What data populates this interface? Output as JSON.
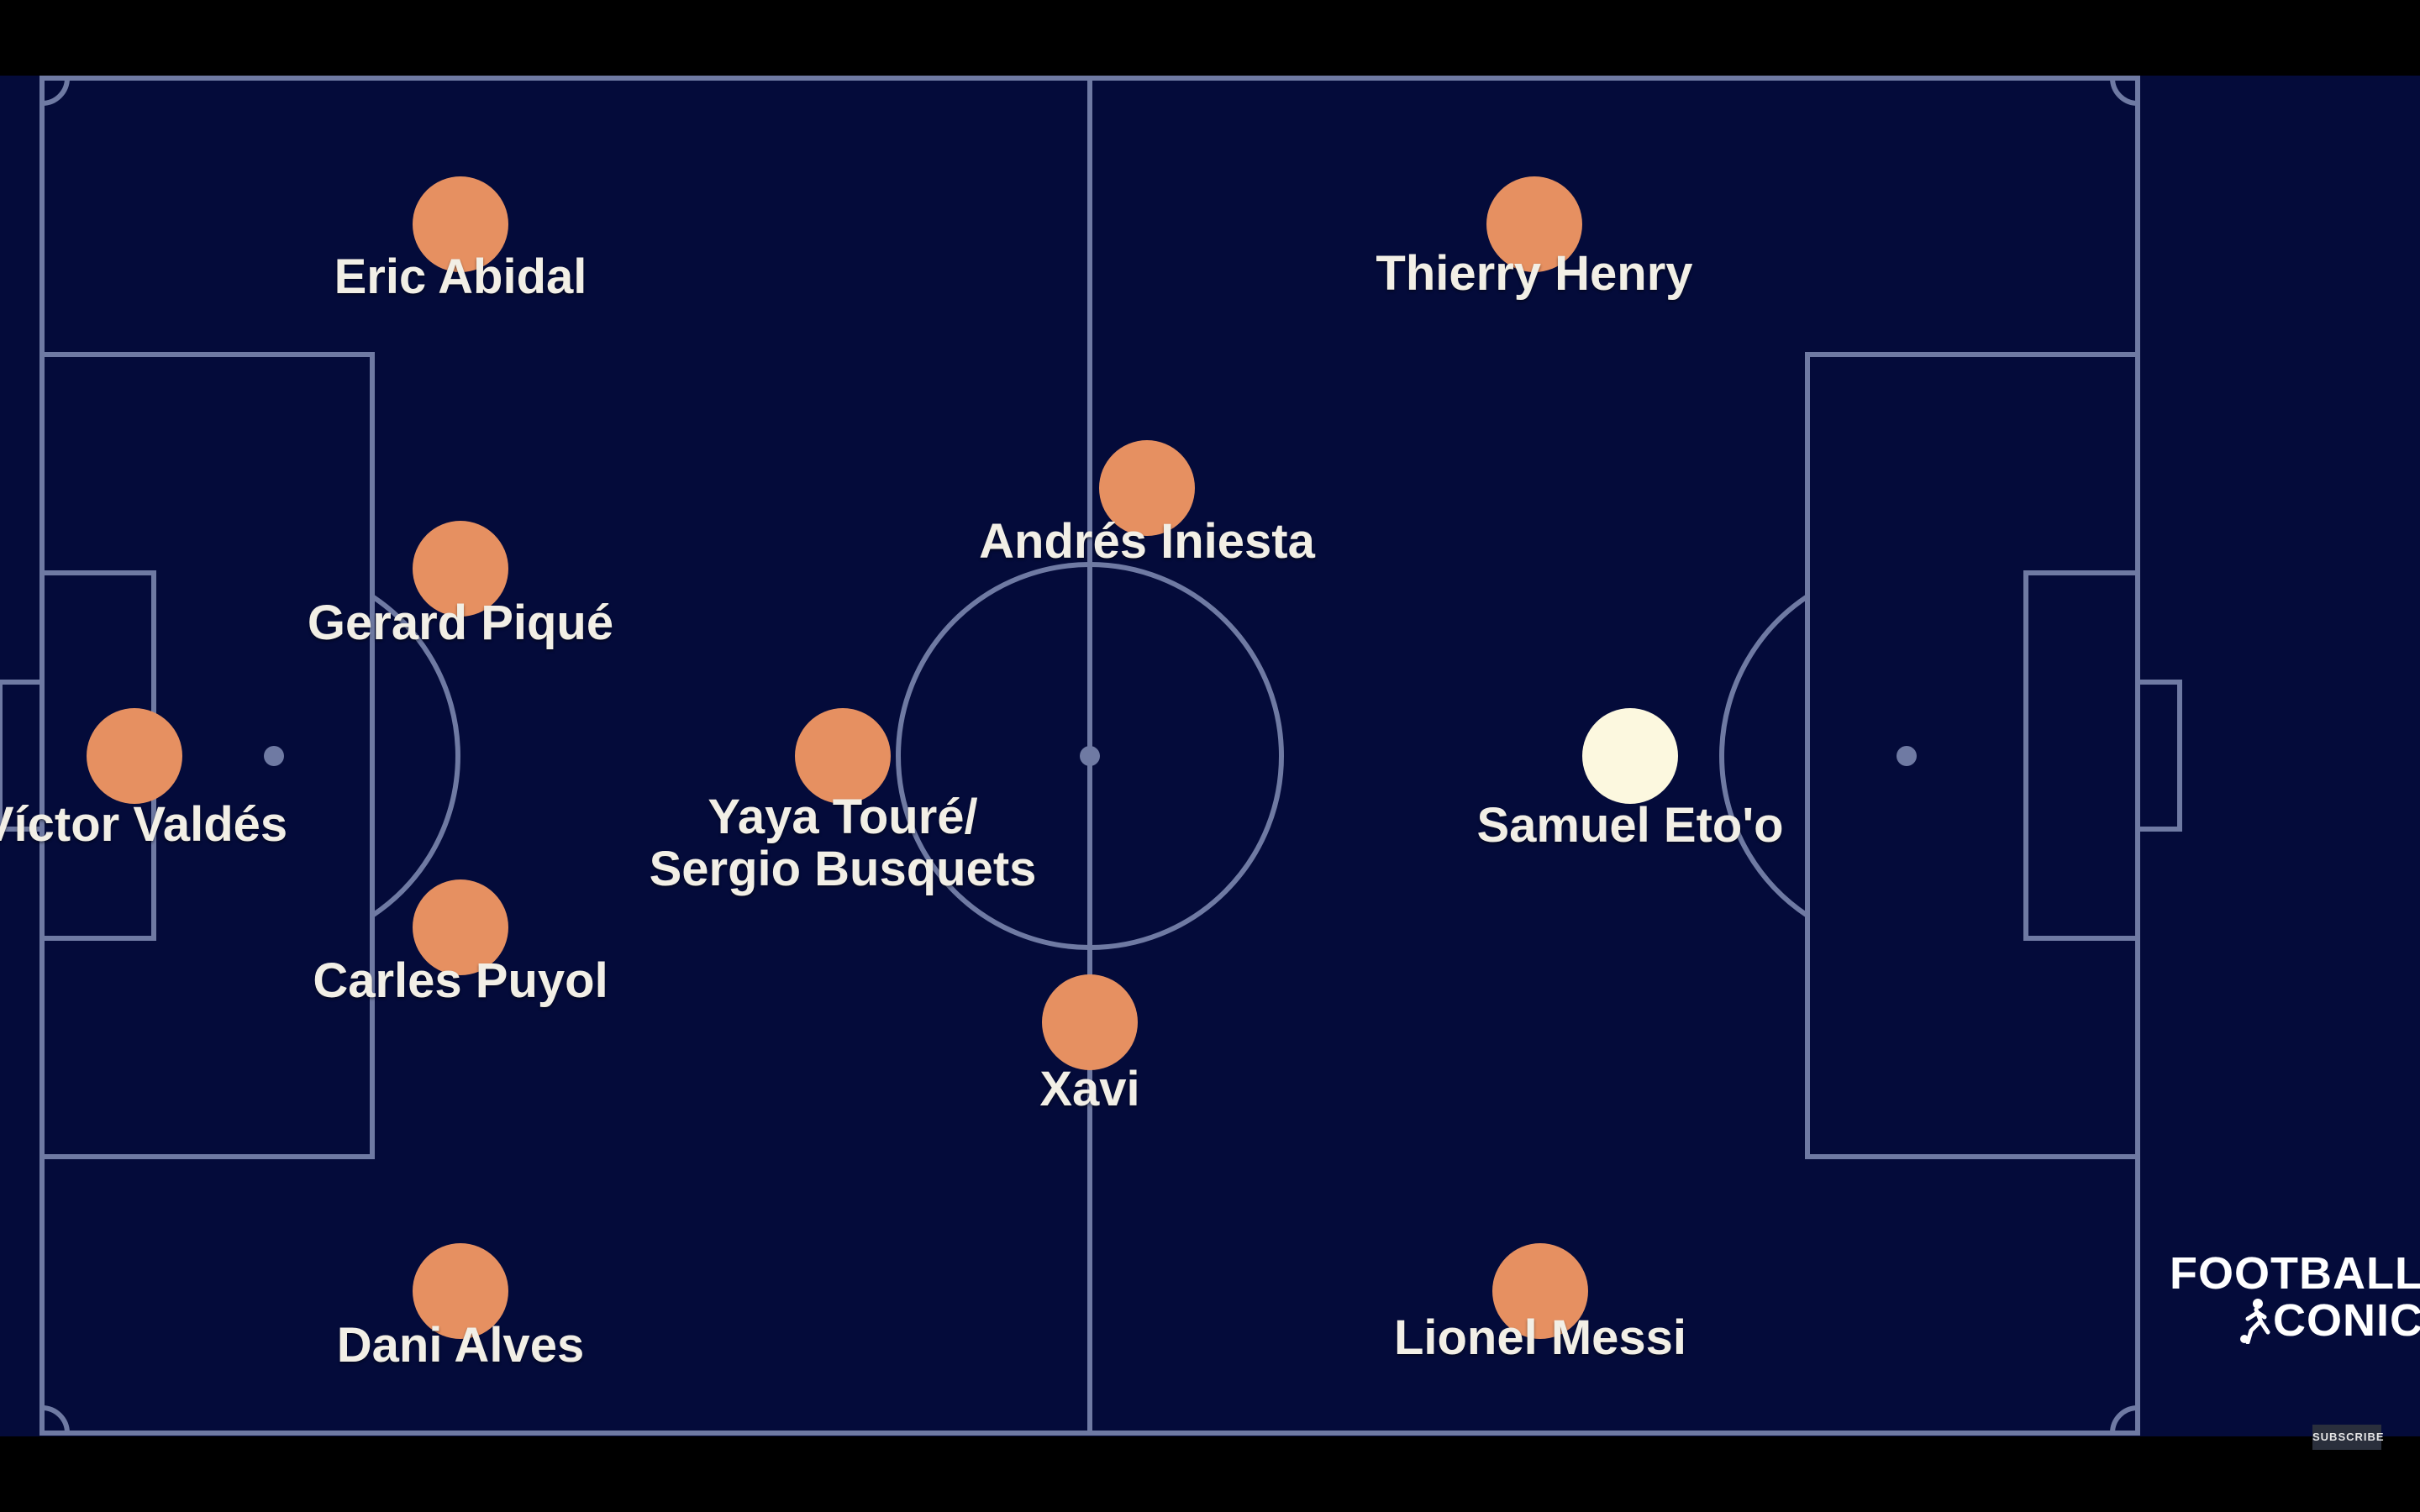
{
  "colors": {
    "pitch": "#040b3a",
    "line": "#6f7aa3",
    "player_dot": "#e69061",
    "highlight_dot": "#fcf8df",
    "text": "#f2efe6"
  },
  "players": [
    {
      "name": "Eric Abidal",
      "highlighted": false
    },
    {
      "name": "Gerard Piqué",
      "highlighted": false
    },
    {
      "name": "Víctor Valdés",
      "highlighted": false
    },
    {
      "name": "Carles Puyol",
      "highlighted": false
    },
    {
      "name": "Dani Alves",
      "highlighted": false
    },
    {
      "name": "Yaya Touré/\nSergio Busquets",
      "highlighted": false
    },
    {
      "name": "Andrés Iniesta",
      "highlighted": false
    },
    {
      "name": "Xavi",
      "highlighted": false
    },
    {
      "name": "Thierry Henry",
      "highlighted": false
    },
    {
      "name": "Samuel Eto'o",
      "highlighted": true
    },
    {
      "name": "Lionel Messi",
      "highlighted": false
    }
  ],
  "logo": {
    "line1": "FOOTBALL",
    "line2": "CONIC",
    "icon": "player-kicking-icon"
  },
  "subscribe_label": "SUBSCRIBE"
}
